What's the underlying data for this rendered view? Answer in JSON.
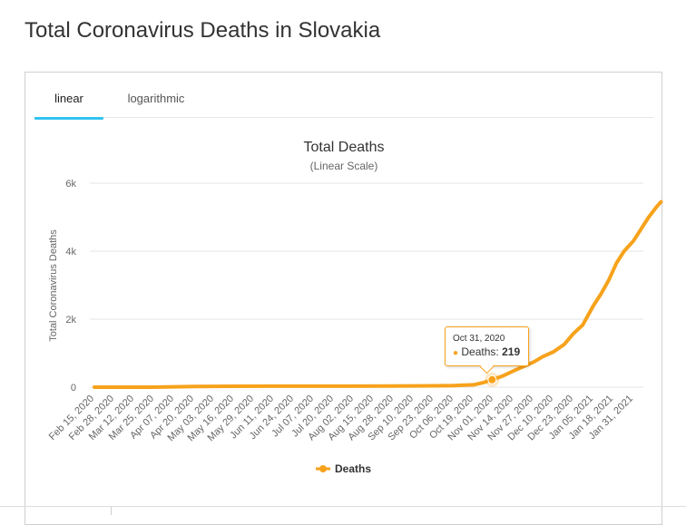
{
  "page": {
    "title": "Total Coronavirus Deaths in Slovakia"
  },
  "tabs": [
    {
      "label": "linear",
      "active": true
    },
    {
      "label": "logarithmic",
      "active": false
    }
  ],
  "tooltip": {
    "date": "Oct 31, 2020",
    "series": "Deaths",
    "value": "219"
  },
  "colors": {
    "series": "#f7a21b",
    "tab_accent": "#33c3f0",
    "grid": "#e6e6e6"
  },
  "chart_data": {
    "type": "line",
    "title": "Total Deaths",
    "subtitle": "(Linear Scale)",
    "ylabel": "Total Coronavirus Deaths",
    "xlabel": "",
    "ylim": [
      0,
      6000
    ],
    "y_ticks": [
      0,
      2000,
      4000,
      6000
    ],
    "y_tick_labels": [
      "0",
      "2k",
      "4k",
      "6k"
    ],
    "x_tick_labels": [
      "Feb 15, 2020",
      "Feb 28, 2020",
      "Mar 12, 2020",
      "Mar 25, 2020",
      "Apr 07, 2020",
      "Apr 20, 2020",
      "May 03, 2020",
      "May 16, 2020",
      "May 29, 2020",
      "Jun 11, 2020",
      "Jun 24, 2020",
      "Jul 07, 2020",
      "Jul 20, 2020",
      "Aug 02, 2020",
      "Aug 15, 2020",
      "Aug 28, 2020",
      "Sep 10, 2020",
      "Sep 23, 2020",
      "Oct 06, 2020",
      "Oct 19, 2020",
      "Nov 01, 2020",
      "Nov 14, 2020",
      "Nov 27, 2020",
      "Dec 10, 2020",
      "Dec 23, 2020",
      "Jan 05, 2021",
      "Jan 18, 2021",
      "Jan 31, 2021"
    ],
    "grid": true,
    "legend_position": "bottom-center",
    "highlight": {
      "x": "Oct 31, 2020",
      "y": 219
    },
    "series": [
      {
        "name": "Deaths",
        "x": [
          "Feb 15, 2020",
          "Mar 25, 2020",
          "Apr 20, 2020",
          "May 03, 2020",
          "Jun 11, 2020",
          "Jul 20, 2020",
          "Aug 28, 2020",
          "Sep 23, 2020",
          "Oct 06, 2020",
          "Oct 19, 2020",
          "Oct 25, 2020",
          "Oct 31, 2020",
          "Nov 07, 2020",
          "Nov 14, 2020",
          "Nov 21, 2020",
          "Nov 27, 2020",
          "Dec 03, 2020",
          "Dec 10, 2020",
          "Dec 17, 2020",
          "Dec 23, 2020",
          "Dec 29, 2020",
          "Jan 05, 2021",
          "Jan 10, 2021",
          "Jan 15, 2021",
          "Jan 20, 2021",
          "Jan 25, 2021",
          "Jan 31, 2021",
          "Feb 05, 2021",
          "Feb 10, 2021",
          "Feb 15, 2021",
          "Feb 18, 2021"
        ],
        "values": [
          0,
          1,
          20,
          25,
          28,
          28,
          33,
          40,
          48,
          70,
          130,
          219,
          330,
          480,
          620,
          740,
          900,
          1040,
          1260,
          1580,
          1830,
          2400,
          2750,
          3150,
          3650,
          4000,
          4300,
          4650,
          5000,
          5300,
          5450
        ]
      }
    ]
  }
}
